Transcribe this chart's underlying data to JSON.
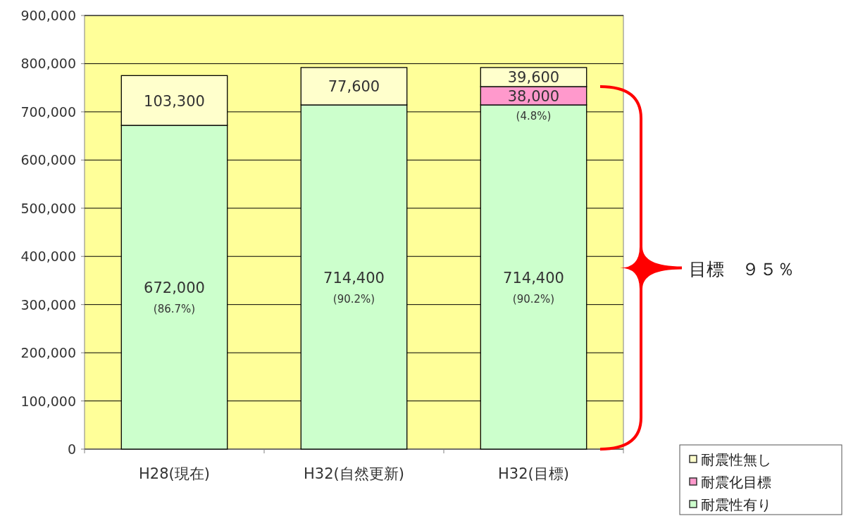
{
  "chart_data": {
    "type": "bar",
    "stacked": true,
    "categories": [
      "H28(現在)",
      "H32(自然更新)",
      "H32(目標)"
    ],
    "series": [
      {
        "name": "耐震性有り",
        "color": "#ccffcc",
        "values": [
          672000,
          714400,
          714400
        ],
        "value_labels": [
          "672,000\n(86.7%)",
          "714,400\n(90.2%)",
          "714,400\n(90.2%)"
        ]
      },
      {
        "name": "耐震化目標",
        "color": "#ff99cc",
        "values": [
          null,
          null,
          38000
        ],
        "value_labels": [
          null,
          null,
          "38,000\n(4.8%)"
        ]
      },
      {
        "name": "耐震性無し",
        "color": "#ffffcc",
        "values": [
          103300,
          77600,
          39600
        ],
        "value_labels": [
          "103,300",
          "77,600",
          "39,600"
        ]
      }
    ],
    "ylim": [
      0,
      900000
    ],
    "yticks": [
      {
        "value": 0,
        "label": "0"
      },
      {
        "value": 100000,
        "label": "100,000"
      },
      {
        "value": 200000,
        "label": "200,000"
      },
      {
        "value": 300000,
        "label": "300,000"
      },
      {
        "value": 400000,
        "label": "400,000"
      },
      {
        "value": 500000,
        "label": "500,000"
      },
      {
        "value": 600000,
        "label": "600,000"
      },
      {
        "value": 700000,
        "label": "700,000"
      },
      {
        "value": 800000,
        "label": "800,000"
      },
      {
        "value": 900000,
        "label": "900,000"
      }
    ],
    "grid": "y",
    "legend": "bottom right",
    "annotations": [
      "目標　９５％"
    ]
  }
}
